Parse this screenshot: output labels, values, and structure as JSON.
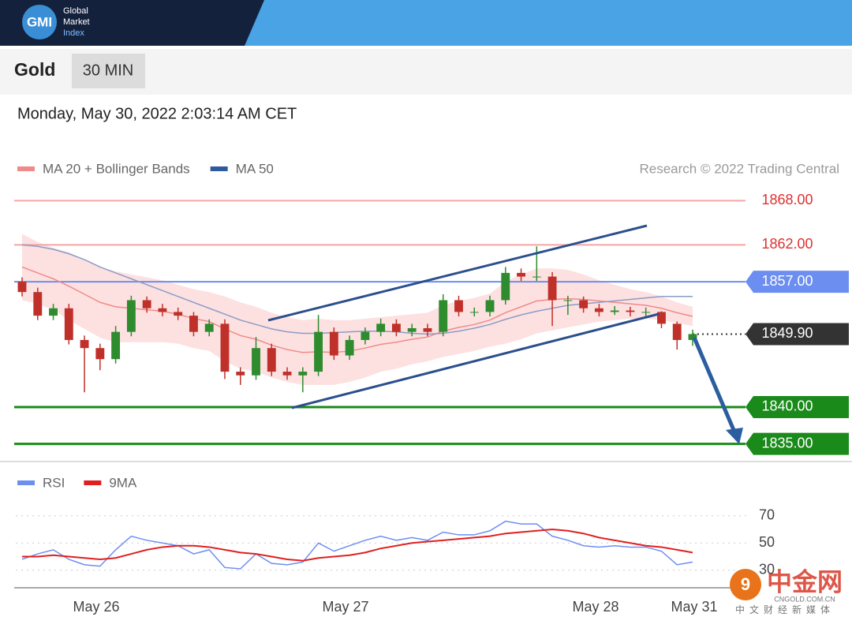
{
  "header": {
    "logo": "GMI",
    "brand": [
      "Global",
      "Market",
      "Index"
    ]
  },
  "instrument": "Gold",
  "timeframe": "30 MIN",
  "timestamp": "Monday, May 30, 2022 2:03:14 AM CET",
  "watermark": {
    "name": "中金网",
    "domain": "CNGOLD.COM.CN",
    "tagline": "中文财经新媒体"
  },
  "chart_data": [
    {
      "type": "candlestick",
      "credit": "Research © 2022 Trading Central",
      "up_color": "#2e8b2e",
      "down_color": "#c0302a",
      "ylim": [
        1834,
        1869
      ],
      "open": [
        1857.0,
        1855.6,
        1852.4,
        1853.4,
        1849.1,
        1848.0,
        1846.5,
        1850.2,
        1854.5,
        1853.4,
        1852.9,
        1852.4,
        1850.2,
        1851.3,
        1844.8,
        1844.3,
        1848.0,
        1844.8,
        1844.3,
        1844.8,
        1850.2,
        1847.0,
        1849.1,
        1850.2,
        1851.3,
        1850.2,
        1850.7,
        1850.2,
        1854.5,
        1852.9,
        1852.9,
        1854.5,
        1858.2,
        1857.7,
        1857.7,
        1854.5,
        1854.5,
        1853.4,
        1852.9,
        1853.1,
        1852.9,
        1852.9,
        1851.3,
        1849.1
      ],
      "high": [
        1857.6,
        1856.2,
        1854.0,
        1854.0,
        1849.7,
        1848.6,
        1851.0,
        1855.1,
        1855.0,
        1854.0,
        1853.5,
        1852.9,
        1851.9,
        1851.9,
        1845.4,
        1849.5,
        1848.6,
        1845.4,
        1845.4,
        1852.5,
        1850.8,
        1849.7,
        1850.8,
        1852.0,
        1851.9,
        1851.3,
        1851.3,
        1855.3,
        1855.1,
        1853.5,
        1855.1,
        1859.0,
        1858.8,
        1861.8,
        1858.3,
        1855.1,
        1855.0,
        1854.0,
        1853.7,
        1853.6,
        1853.5,
        1853.0,
        1851.6,
        1850.5
      ],
      "low": [
        1855.0,
        1851.8,
        1851.8,
        1848.5,
        1842.0,
        1845.0,
        1845.9,
        1849.6,
        1852.8,
        1852.3,
        1851.8,
        1849.6,
        1849.6,
        1843.8,
        1843.0,
        1843.7,
        1844.2,
        1843.7,
        1842.0,
        1844.2,
        1846.4,
        1846.4,
        1848.5,
        1849.6,
        1849.6,
        1849.6,
        1849.6,
        1849.6,
        1852.3,
        1852.3,
        1852.3,
        1853.9,
        1857.1,
        1857.1,
        1851.0,
        1852.5,
        1852.8,
        1852.3,
        1852.5,
        1852.3,
        1852.3,
        1850.7,
        1847.8,
        1848.3
      ],
      "close": [
        1855.6,
        1852.4,
        1853.4,
        1849.1,
        1848.0,
        1846.5,
        1850.2,
        1854.5,
        1853.4,
        1852.9,
        1852.4,
        1850.2,
        1851.3,
        1844.8,
        1844.3,
        1848.0,
        1844.8,
        1844.3,
        1844.8,
        1850.2,
        1847.0,
        1849.1,
        1850.2,
        1851.3,
        1850.2,
        1850.7,
        1850.2,
        1854.5,
        1852.9,
        1852.9,
        1854.5,
        1858.2,
        1857.7,
        1857.7,
        1854.5,
        1854.5,
        1853.4,
        1852.9,
        1853.1,
        1852.9,
        1852.9,
        1851.3,
        1849.1,
        1849.9
      ],
      "series": [
        {
          "name": "MA 20 + Bollinger Bands",
          "color": "#f08a8a",
          "band_color": "#fde1e1",
          "values": [
            1859.0,
            1858.2,
            1857.4,
            1856.4,
            1855.3,
            1854.2,
            1853.6,
            1853.4,
            1853.2,
            1853.0,
            1852.6,
            1852.0,
            1851.6,
            1850.6,
            1849.7,
            1849.2,
            1848.4,
            1847.8,
            1847.4,
            1847.5,
            1847.4,
            1847.6,
            1848.0,
            1848.5,
            1848.8,
            1849.2,
            1849.5,
            1850.3,
            1850.8,
            1851.2,
            1851.8,
            1852.8,
            1853.6,
            1854.4,
            1854.6,
            1854.7,
            1854.6,
            1854.4,
            1854.2,
            1854.0,
            1853.8,
            1853.4,
            1852.8,
            1852.3
          ],
          "upper": [
            1863.5,
            1862.4,
            1861.6,
            1861.0,
            1860.0,
            1859.0,
            1858.4,
            1858.0,
            1857.6,
            1857.2,
            1856.6,
            1856.0,
            1855.6,
            1855.0,
            1854.2,
            1853.6,
            1852.8,
            1852.2,
            1851.8,
            1852.0,
            1851.8,
            1851.8,
            1852.0,
            1852.2,
            1852.4,
            1852.6,
            1852.8,
            1853.8,
            1854.4,
            1854.8,
            1855.4,
            1857.0,
            1858.0,
            1858.8,
            1858.8,
            1858.6,
            1858.0,
            1857.2,
            1856.6,
            1856.0,
            1855.6,
            1855.0,
            1854.2,
            1853.6
          ],
          "lower": [
            1854.5,
            1854.0,
            1853.2,
            1851.8,
            1850.6,
            1849.4,
            1848.8,
            1848.8,
            1848.8,
            1848.8,
            1848.6,
            1848.0,
            1847.6,
            1846.2,
            1845.2,
            1844.8,
            1844.0,
            1843.4,
            1843.0,
            1843.0,
            1843.0,
            1843.4,
            1844.0,
            1844.8,
            1845.2,
            1845.8,
            1846.2,
            1846.8,
            1847.2,
            1847.6,
            1848.2,
            1848.6,
            1849.2,
            1850.0,
            1850.4,
            1850.8,
            1851.2,
            1851.6,
            1851.8,
            1852.0,
            1852.0,
            1851.8,
            1851.4,
            1851.0
          ]
        },
        {
          "name": "MA 50",
          "color": "#2f5aa0",
          "line_color": "#8b9cc6",
          "values": [
            1862.0,
            1861.8,
            1861.4,
            1860.8,
            1860.0,
            1859.0,
            1858.2,
            1857.4,
            1856.6,
            1855.8,
            1855.0,
            1854.2,
            1853.4,
            1852.6,
            1851.8,
            1851.2,
            1850.6,
            1850.2,
            1850.0,
            1850.0,
            1850.1,
            1850.2,
            1850.3,
            1850.3,
            1850.2,
            1850.0,
            1849.9,
            1850.0,
            1850.3,
            1850.7,
            1851.2,
            1851.9,
            1852.5,
            1853.0,
            1853.4,
            1853.8,
            1854.0,
            1854.2,
            1854.4,
            1854.6,
            1854.8,
            1855.0,
            1855.0,
            1855.0
          ]
        }
      ],
      "levels": [
        {
          "value": 1868,
          "label": "1868.00",
          "color": "#f6a5a5",
          "text_color": "#e03030",
          "box": false,
          "dash": false
        },
        {
          "value": 1862,
          "label": "1862.00",
          "color": "#f6a5a5",
          "text_color": "#e03030",
          "box": false,
          "dash": false
        },
        {
          "value": 1857,
          "label": "1857.00",
          "color": "#6c8ef0",
          "text_color": "#ffffff",
          "box": true,
          "dash": false
        },
        {
          "value": 1849.9,
          "label": "1849.90",
          "color": "#333333",
          "text_color": "#ffffff",
          "box": true,
          "dash": true
        },
        {
          "value": 1840,
          "label": "1840.00",
          "color": "#1a8a1a",
          "text_color": "#ffffff",
          "box": true,
          "dash": false
        },
        {
          "value": 1835,
          "label": "1835.00",
          "color": "#1a8a1a",
          "text_color": "#ffffff",
          "box": true,
          "dash": false
        }
      ]
    },
    {
      "type": "line",
      "ylim": [
        20,
        78
      ],
      "yticks": [
        70,
        50,
        30
      ],
      "grid": true,
      "x_labels": [
        "May 26",
        "May 27",
        "May 28",
        "May 31"
      ],
      "series": [
        {
          "name": "RSI",
          "color": "#6d8ef0",
          "values": [
            38,
            42,
            45,
            38,
            34,
            33,
            45,
            55,
            52,
            50,
            48,
            42,
            45,
            32,
            31,
            42,
            35,
            34,
            36,
            50,
            44,
            48,
            52,
            55,
            52,
            54,
            52,
            58,
            56,
            56,
            59,
            66,
            64,
            64,
            55,
            52,
            48,
            47,
            48,
            47,
            47,
            44,
            34,
            36
          ]
        },
        {
          "name": "9MA",
          "color": "#e02020",
          "values": [
            40,
            40,
            41,
            40,
            39,
            38,
            39,
            42,
            45,
            47,
            48,
            48,
            47,
            45,
            43,
            42,
            40,
            38,
            37,
            39,
            40,
            41,
            43,
            46,
            48,
            50,
            51,
            52,
            53,
            54,
            55,
            57,
            58,
            59,
            60,
            59,
            57,
            54,
            52,
            50,
            48,
            47,
            45,
            43
          ]
        }
      ]
    }
  ]
}
